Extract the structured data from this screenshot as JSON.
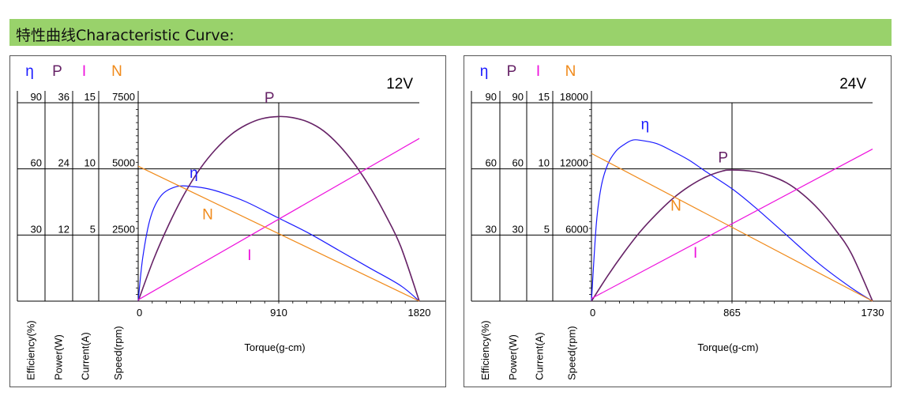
{
  "header": {
    "title": "特性曲线Characteristic Curve:"
  },
  "colors": {
    "banner": "#99d26b",
    "efficiency": "#1a1aff",
    "power": "#662266",
    "current": "#ee11dd",
    "speed": "#f08a1a",
    "grid": "#000000"
  },
  "chart_data": [
    {
      "type": "line",
      "voltage_label": "12V",
      "xlabel": "Torque(g-cm)",
      "x_ticks": [
        0,
        910,
        1820
      ],
      "xlim": [
        0,
        1820
      ],
      "axes": [
        {
          "symbol": "η",
          "label": "Efficiency(%)",
          "ticks": [
            "90",
            "60",
            "30"
          ],
          "max": 90
        },
        {
          "symbol": "P",
          "label": "Power(W)",
          "ticks": [
            "36",
            "24",
            "12"
          ],
          "max": 36
        },
        {
          "symbol": "I",
          "label": "Current(A)",
          "ticks": [
            "15",
            "10",
            "5"
          ],
          "max": 15
        },
        {
          "symbol": "N",
          "label": "Speed(rpm)",
          "ticks": [
            "7500",
            "5000",
            "2500"
          ],
          "max": 7500
        }
      ],
      "series": [
        {
          "name": "η",
          "axis": 0,
          "x": [
            0,
            30,
            80,
            150,
            250,
            350,
            450,
            550,
            700,
            900,
            1100,
            1300,
            1500,
            1700,
            1820
          ],
          "y": [
            0,
            20,
            38,
            48,
            52,
            52,
            51,
            49,
            45,
            38,
            31,
            23,
            15,
            7,
            0
          ]
        },
        {
          "name": "P",
          "axis": 1,
          "x": [
            0,
            100,
            200,
            300,
            400,
            500,
            600,
            700,
            800,
            910,
            1000,
            1100,
            1200,
            1300,
            1400,
            1500,
            1600,
            1700,
            1820
          ],
          "y": [
            0,
            7.6,
            14,
            19.5,
            24,
            27.5,
            30.2,
            32,
            33.1,
            33.5,
            33.3,
            32.5,
            30.9,
            28.3,
            24.9,
            20.7,
            15.7,
            9.9,
            0
          ]
        },
        {
          "name": "I",
          "axis": 2,
          "x": [
            0,
            1820
          ],
          "y": [
            0.1,
            12.3
          ]
        },
        {
          "name": "N",
          "axis": 3,
          "x": [
            0,
            1820
          ],
          "y": [
            5100,
            0
          ]
        }
      ],
      "curve_labels": [
        {
          "text": "η",
          "x": 360,
          "axis": 0,
          "y": 56
        },
        {
          "text": "P",
          "x": 850,
          "axis": 1,
          "y": 36
        },
        {
          "text": "N",
          "x": 450,
          "axis": 3,
          "y": 3100
        },
        {
          "text": "I",
          "x": 720,
          "axis": 2,
          "y": 3.1
        }
      ]
    },
    {
      "type": "line",
      "voltage_label": "24V",
      "xlabel": "Torque(g-cm)",
      "x_ticks": [
        0,
        865,
        1730
      ],
      "xlim": [
        0,
        1730
      ],
      "axes": [
        {
          "symbol": "η",
          "label": "Efficiency(%)",
          "ticks": [
            "90",
            "60",
            "30"
          ],
          "max": 90
        },
        {
          "symbol": "P",
          "label": "Power(W)",
          "ticks": [
            "90",
            "60",
            "30"
          ],
          "max": 90
        },
        {
          "symbol": "I",
          "label": "Current(A)",
          "ticks": [
            "15",
            "10",
            "5"
          ],
          "max": 15
        },
        {
          "symbol": "N",
          "label": "Speed(rpm)",
          "ticks": [
            "18000",
            "12000",
            "6000"
          ],
          "max": 18000
        }
      ],
      "series": [
        {
          "name": "η",
          "axis": 0,
          "x": [
            0,
            30,
            60,
            100,
            150,
            200,
            250,
            300,
            400,
            500,
            600,
            700,
            865,
            1000,
            1200,
            1400,
            1600,
            1730
          ],
          "y": [
            0,
            35,
            52,
            62,
            68,
            71,
            73,
            73,
            71.5,
            68,
            64,
            59,
            51,
            43,
            30,
            17,
            6,
            0
          ]
        },
        {
          "name": "P",
          "axis": 1,
          "x": [
            0,
            100,
            200,
            300,
            400,
            500,
            600,
            700,
            800,
            865,
            1000,
            1100,
            1200,
            1300,
            1400,
            1500,
            1600,
            1730
          ],
          "y": [
            0,
            11.5,
            22,
            31.5,
            39.5,
            46.5,
            52,
            56.2,
            58.9,
            59.5,
            58.8,
            56.9,
            53.7,
            48.5,
            41.5,
            32.5,
            21.5,
            0
          ]
        },
        {
          "name": "I",
          "axis": 2,
          "x": [
            0,
            1730
          ],
          "y": [
            0.2,
            11.5
          ]
        },
        {
          "name": "N",
          "axis": 3,
          "x": [
            0,
            1730
          ],
          "y": [
            13400,
            0
          ]
        }
      ],
      "curve_labels": [
        {
          "text": "η",
          "x": 330,
          "axis": 0,
          "y": 78
        },
        {
          "text": "P",
          "x": 810,
          "axis": 1,
          "y": 63
        },
        {
          "text": "N",
          "x": 520,
          "axis": 3,
          "y": 8200
        },
        {
          "text": "I",
          "x": 640,
          "axis": 2,
          "y": 3.3
        }
      ]
    }
  ]
}
